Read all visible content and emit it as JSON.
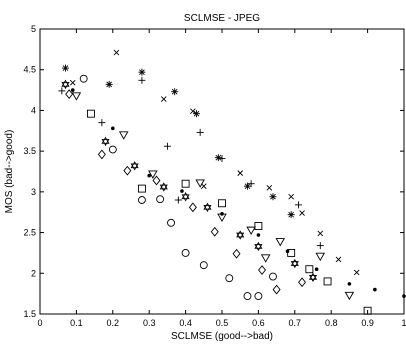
{
  "chart_data": {
    "type": "scatter",
    "title": "SCLMSE - JPEG",
    "xlabel": "SCLMSE (good-->bad)",
    "ylabel": "MOS (bad-->good)",
    "xlim": [
      0,
      1
    ],
    "ylim": [
      1.5,
      5
    ],
    "xticks": [
      0,
      0.1,
      0.2,
      0.3,
      0.4,
      0.5,
      0.6,
      0.7,
      0.8,
      0.9,
      1
    ],
    "xtick_labels": [
      "0",
      "0.1",
      "0.2",
      "0.3",
      "0.4",
      "0.5",
      "0.6",
      "0.7",
      "0.8",
      "0.9",
      "1"
    ],
    "yticks": [
      1.5,
      2,
      2.5,
      3,
      3.5,
      4,
      4.5,
      5
    ],
    "ytick_labels": [
      "1.5",
      "2",
      "2.5",
      "3",
      "3.5",
      "4",
      "4.5",
      "5"
    ],
    "grid": false,
    "legend": "none",
    "marker_color": "#000000",
    "series": [
      {
        "marker": "asterisk",
        "points": [
          [
            0.07,
            4.52
          ],
          [
            0.19,
            4.32
          ],
          [
            0.28,
            4.47
          ],
          [
            0.37,
            4.23
          ],
          [
            0.43,
            3.96
          ],
          [
            0.49,
            3.42
          ],
          [
            0.57,
            3.07
          ],
          [
            0.64,
            2.94
          ],
          [
            0.69,
            2.72
          ]
        ]
      },
      {
        "marker": "x",
        "points": [
          [
            0.21,
            4.71
          ],
          [
            0.34,
            4.14
          ],
          [
            0.42,
            3.99
          ],
          [
            0.55,
            3.23
          ],
          [
            0.63,
            3.05
          ],
          [
            0.69,
            2.94
          ],
          [
            0.72,
            2.74
          ],
          [
            0.77,
            2.49
          ],
          [
            0.82,
            2.17
          ],
          [
            0.87,
            2.01
          ],
          [
            0.09,
            4.34
          ],
          [
            0.45,
            3.07
          ]
        ]
      },
      {
        "marker": "plus",
        "points": [
          [
            0.06,
            4.24
          ],
          [
            0.17,
            3.85
          ],
          [
            0.28,
            4.37
          ],
          [
            0.35,
            3.56
          ],
          [
            0.44,
            3.73
          ],
          [
            0.5,
            3.41
          ],
          [
            0.58,
            3.1
          ],
          [
            0.71,
            2.84
          ],
          [
            0.77,
            2.34
          ],
          [
            0.38,
            2.9
          ]
        ]
      },
      {
        "marker": "dot",
        "points": [
          [
            0.09,
            4.25
          ],
          [
            0.2,
            3.78
          ],
          [
            0.39,
            3.01
          ],
          [
            0.5,
            2.73
          ],
          [
            0.6,
            2.47
          ],
          [
            0.68,
            2.27
          ],
          [
            0.76,
            2.05
          ],
          [
            0.85,
            1.87
          ],
          [
            0.92,
            1.8
          ],
          [
            1.0,
            1.72
          ],
          [
            0.3,
            3.2
          ]
        ]
      },
      {
        "marker": "circle",
        "points": [
          [
            0.12,
            4.39
          ],
          [
            0.2,
            3.52
          ],
          [
            0.28,
            2.9
          ],
          [
            0.36,
            2.62
          ],
          [
            0.4,
            2.25
          ],
          [
            0.45,
            2.1
          ],
          [
            0.52,
            1.94
          ],
          [
            0.57,
            1.72
          ],
          [
            0.6,
            1.72
          ],
          [
            0.64,
            1.96
          ],
          [
            0.33,
            2.91
          ]
        ]
      },
      {
        "marker": "square",
        "points": [
          [
            0.14,
            3.96
          ],
          [
            0.28,
            3.04
          ],
          [
            0.4,
            3.1
          ],
          [
            0.5,
            2.86
          ],
          [
            0.6,
            2.58
          ],
          [
            0.69,
            2.25
          ],
          [
            0.74,
            2.05
          ],
          [
            0.79,
            1.9
          ],
          [
            0.9,
            1.54
          ]
        ]
      },
      {
        "marker": "diamond",
        "points": [
          [
            0.08,
            4.2
          ],
          [
            0.17,
            3.46
          ],
          [
            0.24,
            3.26
          ],
          [
            0.32,
            3.14
          ],
          [
            0.42,
            2.81
          ],
          [
            0.48,
            2.51
          ],
          [
            0.54,
            2.24
          ],
          [
            0.61,
            2.04
          ],
          [
            0.65,
            1.8
          ],
          [
            0.72,
            1.89
          ]
        ]
      },
      {
        "marker": "triangle-down",
        "points": [
          [
            0.1,
            4.18
          ],
          [
            0.23,
            3.7
          ],
          [
            0.31,
            3.22
          ],
          [
            0.44,
            3.11
          ],
          [
            0.5,
            2.69
          ],
          [
            0.58,
            2.53
          ],
          [
            0.66,
            2.39
          ],
          [
            0.77,
            2.21
          ],
          [
            0.85,
            1.73
          ],
          [
            0.62,
            2.19
          ]
        ]
      },
      {
        "marker": "hexagram",
        "points": [
          [
            0.07,
            4.32
          ],
          [
            0.18,
            3.62
          ],
          [
            0.26,
            3.32
          ],
          [
            0.34,
            3.06
          ],
          [
            0.46,
            2.81
          ],
          [
            0.55,
            2.47
          ],
          [
            0.6,
            2.33
          ],
          [
            0.7,
            2.12
          ],
          [
            0.75,
            1.95
          ],
          [
            0.4,
            2.94
          ]
        ]
      }
    ]
  }
}
